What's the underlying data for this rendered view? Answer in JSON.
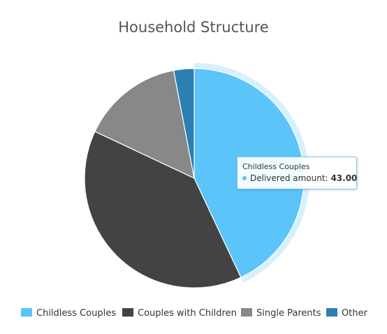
{
  "chart_data": {
    "type": "pie",
    "title": "Household Structure",
    "categories": [
      "Childless Couples",
      "Couples with Children",
      "Single Parents",
      "Other"
    ],
    "values": [
      43,
      39,
      15,
      3
    ],
    "colors": [
      "#5bc4f8",
      "#434343",
      "#888888",
      "#2b7fb3"
    ],
    "series": [
      {
        "name": "Delivered amount",
        "values": [
          43,
          39,
          15,
          3
        ]
      }
    ],
    "hovered_index": 0,
    "legend_position": "bottom"
  },
  "tooltip": {
    "header": "Childless Couples",
    "series_label": "Delivered amount:",
    "value": "43.00",
    "dot_color": "#5bc4f8"
  }
}
